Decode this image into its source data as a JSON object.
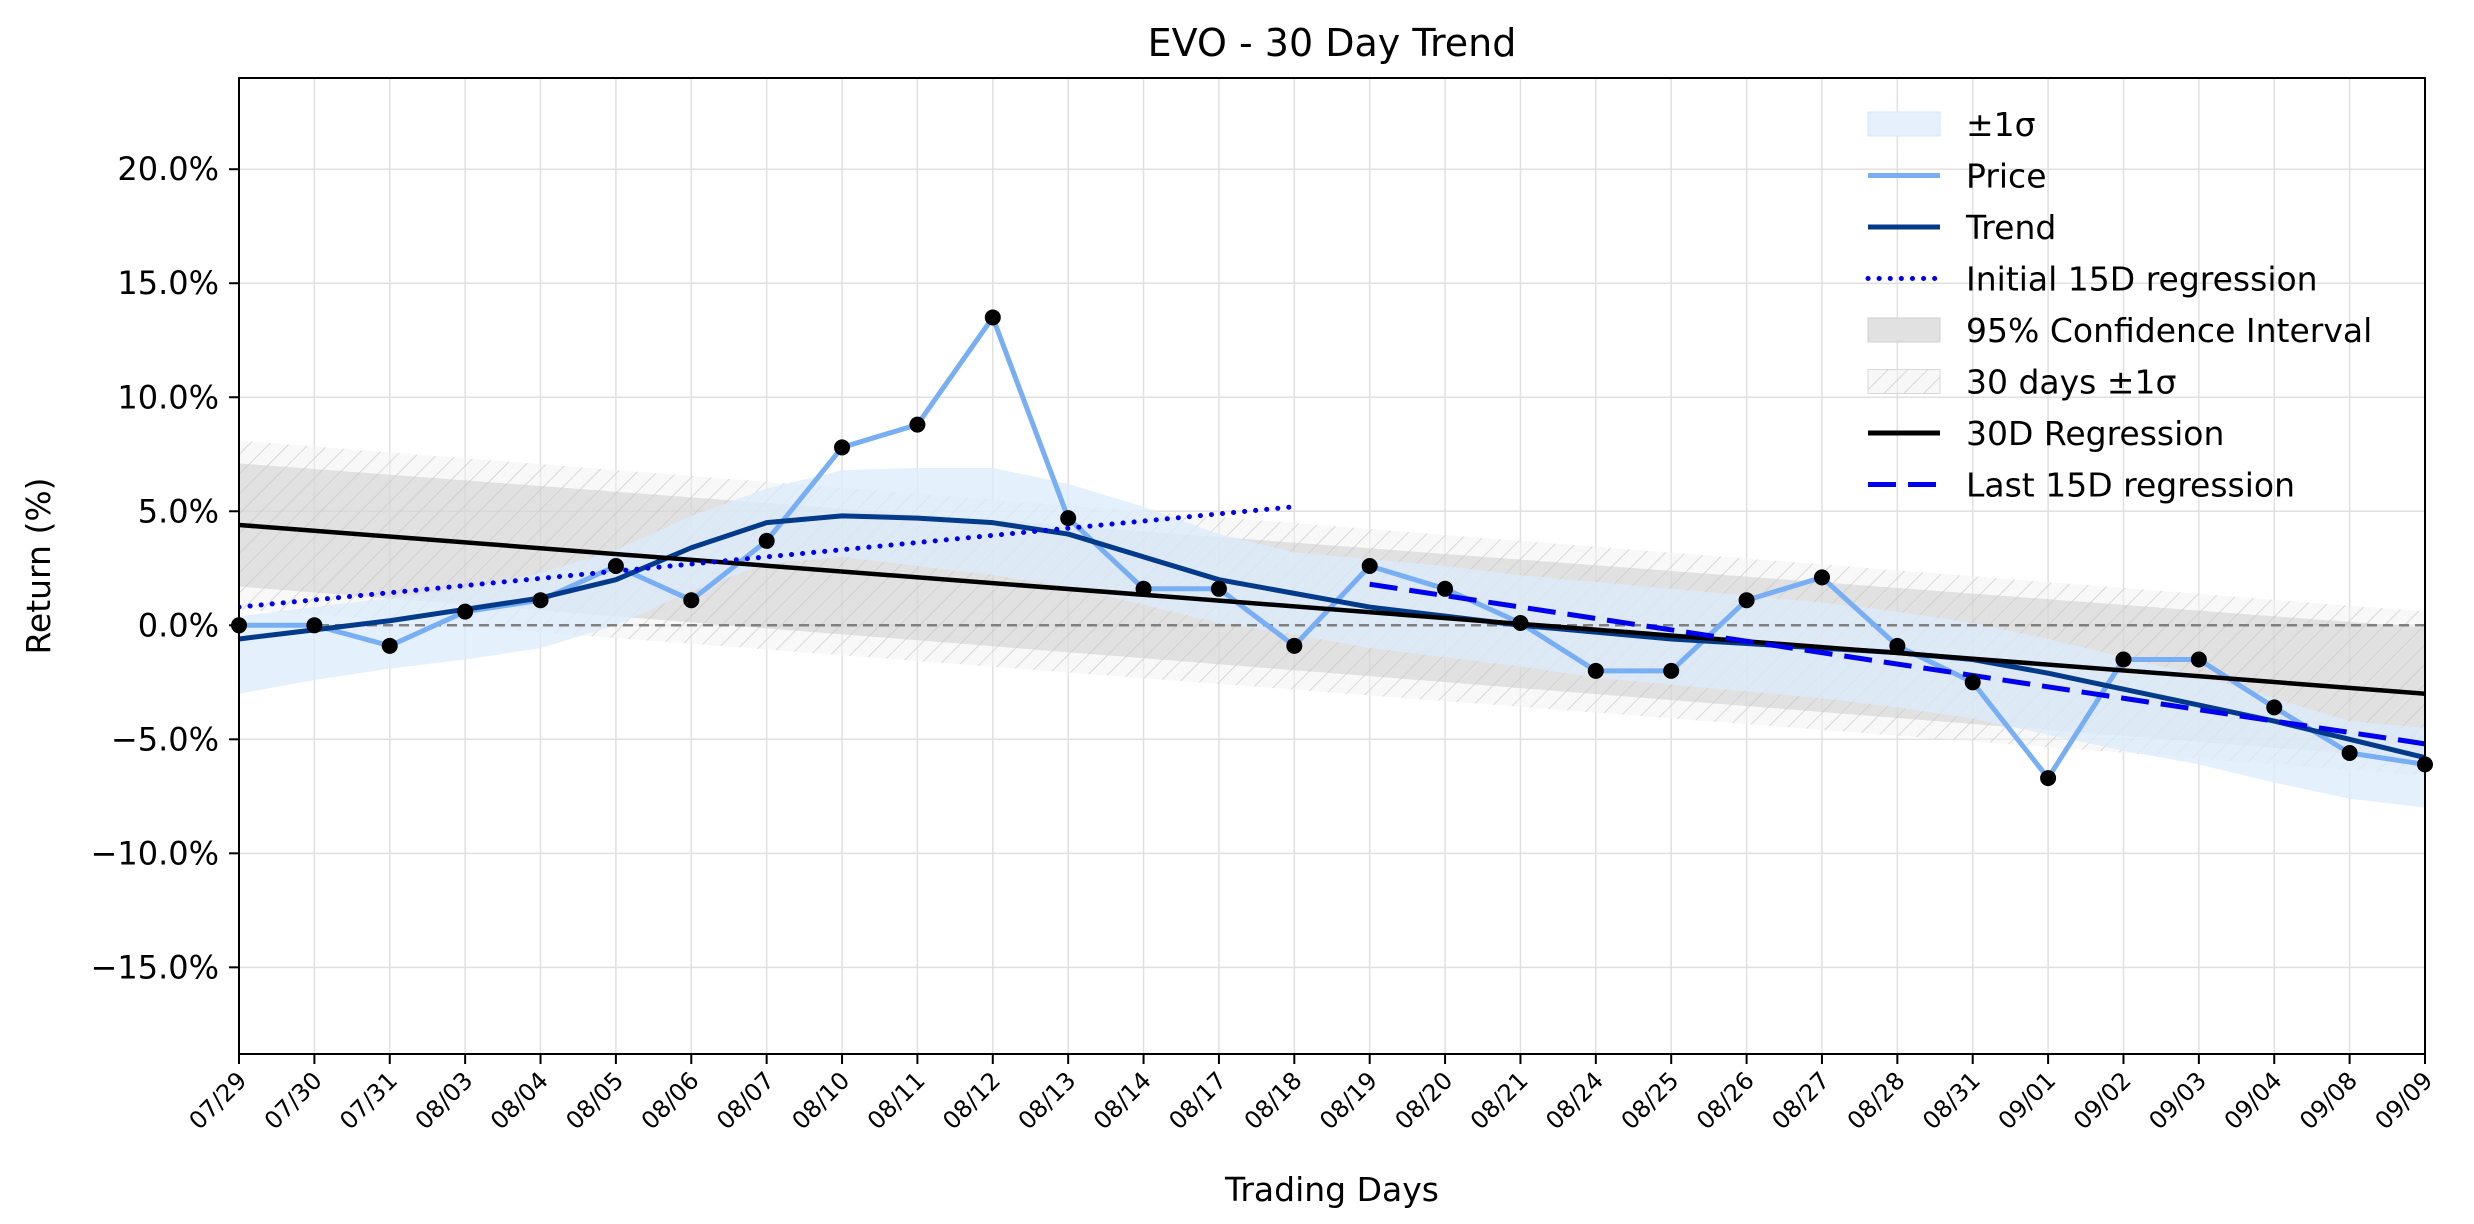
{
  "chart_data": {
    "type": "line",
    "title": "EVO - 30 Day Trend",
    "xlabel": "Trading Days",
    "ylabel": "Return (%)",
    "x": [
      "07/29",
      "07/30",
      "07/31",
      "08/03",
      "08/04",
      "08/05",
      "08/06",
      "08/07",
      "08/10",
      "08/11",
      "08/12",
      "08/13",
      "08/14",
      "08/17",
      "08/18",
      "08/19",
      "08/20",
      "08/21",
      "08/24",
      "08/25",
      "08/26",
      "08/27",
      "08/28",
      "08/31",
      "09/01",
      "09/02",
      "09/03",
      "09/04",
      "09/08",
      "09/09"
    ],
    "ylim": [
      -18.8,
      24.0
    ],
    "yticks": [
      -15,
      -10,
      -5,
      0,
      5,
      10,
      15,
      20
    ],
    "ytick_labels": [
      "−15.0%",
      "−10.0%",
      "−5.0%",
      "0.0%",
      "5.0%",
      "10.0%",
      "15.0%",
      "20.0%"
    ],
    "grid": true,
    "legend_placement": "top-right",
    "series": [
      {
        "name": "Price",
        "color": "#78aef3",
        "values": [
          0.0,
          0.0,
          -0.9,
          0.6,
          1.1,
          2.6,
          1.1,
          3.7,
          7.8,
          8.8,
          13.5,
          4.7,
          1.6,
          1.6,
          -0.9,
          2.6,
          1.6,
          0.1,
          -2.0,
          -2.0,
          1.1,
          2.1,
          -0.9,
          -2.5,
          -6.7,
          -1.5,
          -1.5,
          -3.6,
          -5.6,
          -6.1
        ]
      },
      {
        "name": "Trend",
        "color": "#043a8a",
        "values": [
          -0.6,
          -0.2,
          0.2,
          0.7,
          1.2,
          2.0,
          3.4,
          4.5,
          4.8,
          4.7,
          4.5,
          4.0,
          3.0,
          2.0,
          1.4,
          0.8,
          0.4,
          0.0,
          -0.3,
          -0.6,
          -0.8,
          -1.0,
          -1.2,
          -1.5,
          -2.1,
          -2.8,
          -3.5,
          -4.2,
          -5.0,
          -5.8
        ]
      },
      {
        "name": "Initial 15D regression",
        "color": "#0000ee",
        "style": "dotted",
        "start": 0,
        "end": 14,
        "y_start": 0.8,
        "y_end": 5.2
      },
      {
        "name": "30D Regression",
        "color": "#000000",
        "start": 0,
        "end": 29,
        "y_start": 4.4,
        "y_end": -3.0
      },
      {
        "name": "Last 15D regression",
        "color": "#0000ee",
        "style": "dashed",
        "start": 15,
        "end": 29,
        "y_start": 1.8,
        "y_end": -5.2
      }
    ],
    "bands": [
      {
        "name": "±1σ",
        "color": "#dcebfc",
        "upper": [
          0.4,
          0.8,
          1.2,
          1.6,
          2.3,
          3.3,
          4.8,
          6.0,
          6.8,
          6.9,
          6.9,
          6.2,
          5.2,
          4.0,
          3.2,
          2.9,
          2.6,
          2.2,
          1.9,
          1.6,
          1.3,
          1.0,
          0.6,
          0.1,
          -0.6,
          -1.4,
          -2.2,
          -3.2,
          -4.2,
          -4.5
        ],
        "lower": [
          -3.0,
          -2.4,
          -1.9,
          -1.5,
          -1.0,
          0.0,
          1.5,
          2.7,
          3.0,
          2.6,
          2.2,
          1.7,
          0.9,
          0.1,
          -0.4,
          -1.0,
          -1.4,
          -1.8,
          -2.3,
          -2.6,
          -2.9,
          -3.2,
          -3.6,
          -4.1,
          -4.8,
          -5.5,
          -6.1,
          -6.9,
          -7.6,
          -8.0
        ]
      },
      {
        "name": "95% Confidence Interval",
        "color": "#c6c6c6",
        "upper": [
          7.1,
          -0.1
        ],
        "lower": [
          1.7,
          -5.9
        ]
      },
      {
        "name": "30 days ±1σ",
        "color": "#d0d0d0",
        "upper": [
          8.1,
          0.6
        ],
        "lower": [
          0.7,
          -6.6
        ]
      }
    ],
    "reference_line": {
      "y": 0.0,
      "style": "dashed",
      "color": "#808080"
    }
  }
}
